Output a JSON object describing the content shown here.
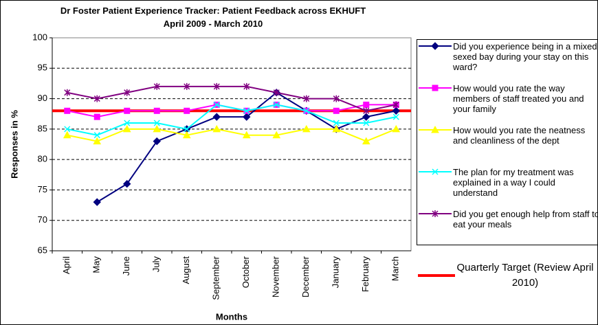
{
  "chart_data": {
    "type": "line",
    "title": "Dr Foster Patient Experience Tracker: Patient Feedback across EKHUFT April 2009 - March 2010",
    "xlabel": "Months",
    "ylabel": "Responses in %",
    "categories": [
      "April",
      "May",
      "June",
      "July",
      "August",
      "September",
      "October",
      "November",
      "December",
      "January",
      "February",
      "March"
    ],
    "series": [
      {
        "name": "Did you experience being in a mixed sexed bay during your stay on this ward?",
        "color": "#000080",
        "marker": "diamond",
        "values": [
          null,
          73,
          76,
          83,
          85,
          87,
          87,
          91,
          88,
          85,
          87,
          88
        ]
      },
      {
        "name": "How would you rate the way members of staff treated you and your family",
        "color": "#ff00ff",
        "marker": "square",
        "values": [
          88,
          87,
          88,
          88,
          88,
          89,
          88,
          89,
          88,
          88,
          89,
          89
        ]
      },
      {
        "name": "How would you rate the neatness and cleanliness of the dept",
        "color": "#ffff00",
        "marker": "triangle",
        "values": [
          84,
          83,
          85,
          85,
          84,
          85,
          84,
          84,
          85,
          85,
          83,
          85
        ]
      },
      {
        "name": "The plan for my treatment was explained in a way I could understand",
        "color": "#00ffff",
        "marker": "x",
        "values": [
          85,
          84,
          86,
          86,
          85,
          89,
          88,
          89,
          88,
          86,
          86,
          87
        ]
      },
      {
        "name": "Did you get enough help from staff to eat your meals",
        "color": "#800080",
        "marker": "star",
        "values": [
          91,
          90,
          91,
          92,
          92,
          92,
          92,
          91,
          90,
          90,
          88,
          89
        ]
      }
    ],
    "target": {
      "name": "Quarterly Target (Review April 2010)",
      "value": 88,
      "color": "#ff0000"
    },
    "ylim": [
      65,
      100
    ],
    "yticks": [
      65,
      70,
      75,
      80,
      85,
      90,
      95,
      100
    ],
    "grid": true
  }
}
